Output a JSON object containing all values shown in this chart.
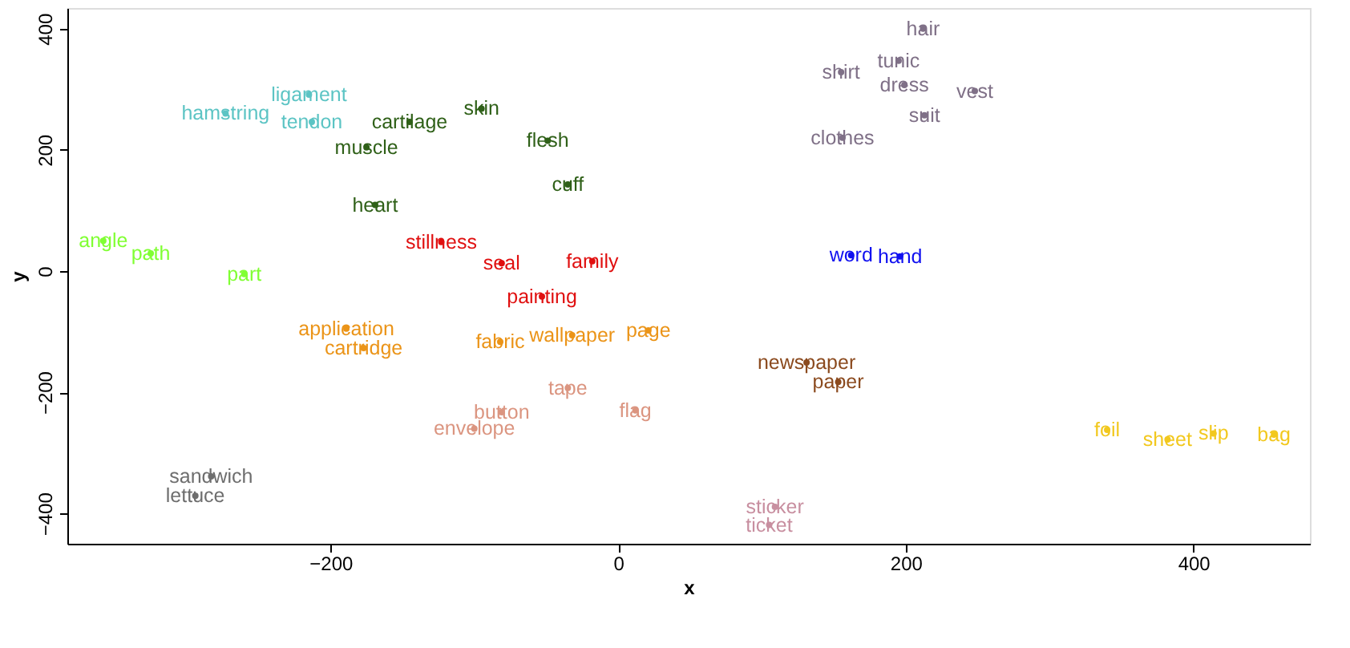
{
  "chart_data": {
    "type": "scatter",
    "xlabel": "x",
    "ylabel": "y",
    "xlim": [
      -383,
      481
    ],
    "ylim": [
      -450,
      434
    ],
    "xticks": [
      -200,
      0,
      200,
      400
    ],
    "yticks": [
      -400,
      -200,
      0,
      200,
      400
    ],
    "grid": false,
    "legend": false,
    "series": [
      {
        "color": "#7f7087",
        "x": [
          212,
          155,
          195,
          199,
          248,
          213,
          156
        ],
        "values": [
          400,
          328,
          347,
          307,
          297,
          257,
          220
        ],
        "value_labels": [
          "hair",
          "shirt",
          "tunic",
          "dress",
          "vest",
          "suit",
          "clothes"
        ]
      },
      {
        "color": "#5cc4c4",
        "x": [
          -215,
          -273,
          -213
        ],
        "values": [
          291,
          260,
          246
        ],
        "value_labels": [
          "ligament",
          "hamstring",
          "tendon"
        ]
      },
      {
        "color": "#2f6018",
        "x": [
          -145,
          -95,
          -175,
          -49,
          -35,
          -169
        ],
        "values": [
          246,
          268,
          204,
          215,
          143,
          109
        ],
        "value_labels": [
          "cartilage",
          "skin",
          "muscle",
          "flesh",
          "cuff",
          "heart"
        ]
      },
      {
        "color": "#80ff33",
        "x": [
          -358,
          -325,
          -260
        ],
        "values": [
          50,
          29,
          -5
        ],
        "value_labels": [
          "angle",
          "path",
          "part"
        ]
      },
      {
        "color": "#e01010",
        "x": [
          -123,
          -81,
          -18,
          -53
        ],
        "values": [
          48,
          13,
          16,
          -42
        ],
        "value_labels": [
          "stillness",
          "seal",
          "family",
          "painting"
        ]
      },
      {
        "color": "#1010f0",
        "x": [
          162,
          196
        ],
        "values": [
          26,
          24
        ],
        "value_labels": [
          "word",
          "hand"
        ]
      },
      {
        "color": "#eb9418",
        "x": [
          -189,
          -177,
          -82,
          -32,
          21
        ],
        "values": [
          -95,
          -127,
          -117,
          -106,
          -98
        ],
        "value_labels": [
          "application",
          "cartridge",
          "fabric",
          "wallpaper",
          "page"
        ]
      },
      {
        "color": "#8b4a1e",
        "x": [
          131,
          153
        ],
        "values": [
          -151,
          -183
        ],
        "value_labels": [
          "newspaper",
          "paper"
        ]
      },
      {
        "color": "#db9580",
        "x": [
          -35,
          -81,
          -100,
          12
        ],
        "values": [
          -193,
          -233,
          -260,
          -230
        ],
        "value_labels": [
          "tape",
          "button",
          "envelope",
          "flag"
        ]
      },
      {
        "color": "#f2c81e",
        "x": [
          340,
          382,
          414,
          456
        ],
        "values": [
          -262,
          -278,
          -268,
          -270
        ],
        "value_labels": [
          "foil",
          "sheet",
          "slip",
          "bag"
        ]
      },
      {
        "color": "#6e6e6e",
        "x": [
          -283,
          -294
        ],
        "values": [
          -339,
          -371
        ],
        "value_labels": [
          "sandwich",
          "lettuce"
        ]
      },
      {
        "color": "#c88fa0",
        "x": [
          109,
          105
        ],
        "values": [
          -389,
          -419
        ],
        "value_labels": [
          "sticker",
          "ticket"
        ]
      }
    ]
  }
}
